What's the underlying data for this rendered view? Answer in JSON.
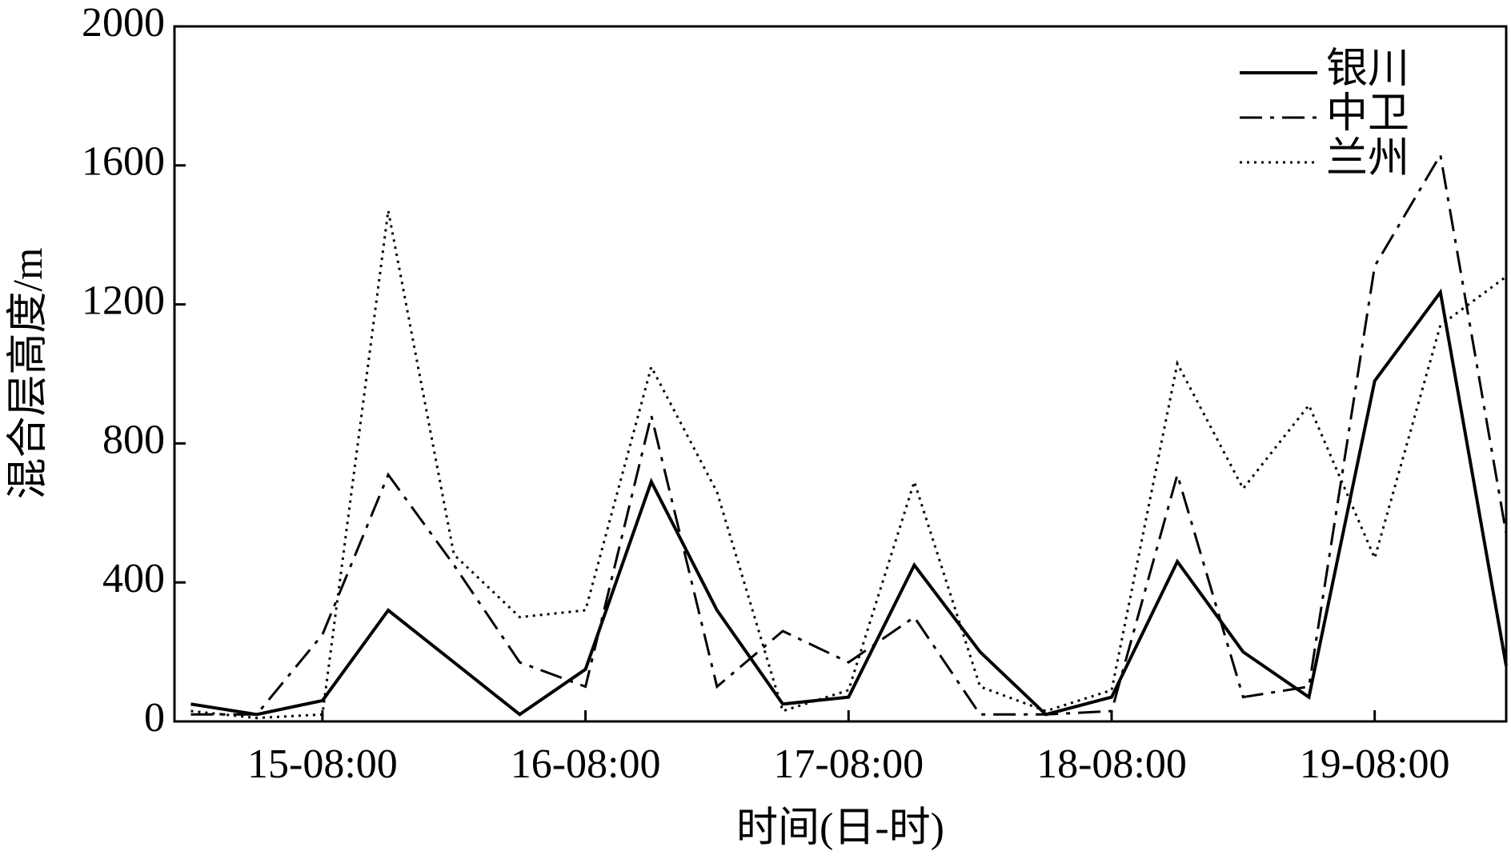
{
  "chart_data": {
    "type": "line",
    "x_label": "时间(日-时)",
    "y_label": "混合层高度/m",
    "categories": [
      null,
      null,
      "15-08:00",
      null,
      null,
      null,
      "16-08:00",
      null,
      null,
      null,
      "17-08:00",
      null,
      null,
      null,
      "18-08:00",
      null,
      null,
      null,
      "19-08:00",
      null,
      null
    ],
    "series": [
      {
        "name": "银川",
        "color": "#000000",
        "style": "solid",
        "values": [
          50,
          20,
          60,
          320,
          170,
          20,
          150,
          690,
          320,
          50,
          70,
          450,
          200,
          20,
          70,
          460,
          200,
          70,
          980,
          1235,
          160
        ]
      },
      {
        "name": "中卫",
        "color": "#000000",
        "style": "dashdot",
        "values": [
          20,
          20,
          250,
          710,
          450,
          170,
          100,
          880,
          100,
          260,
          170,
          300,
          20,
          20,
          30,
          710,
          70,
          100,
          1310,
          1630,
          540
        ]
      },
      {
        "name": "兰州",
        "color": "#000000",
        "style": "dotted",
        "values": [
          30,
          10,
          20,
          1470,
          480,
          300,
          320,
          1020,
          660,
          30,
          90,
          690,
          100,
          30,
          90,
          1030,
          670,
          910,
          470,
          1140,
          1280
        ]
      }
    ],
    "ylim": [
      0,
      2000
    ],
    "yticks": [
      0,
      400,
      800,
      1200,
      1600,
      2000
    ],
    "grid": false,
    "legend": "top-right"
  }
}
